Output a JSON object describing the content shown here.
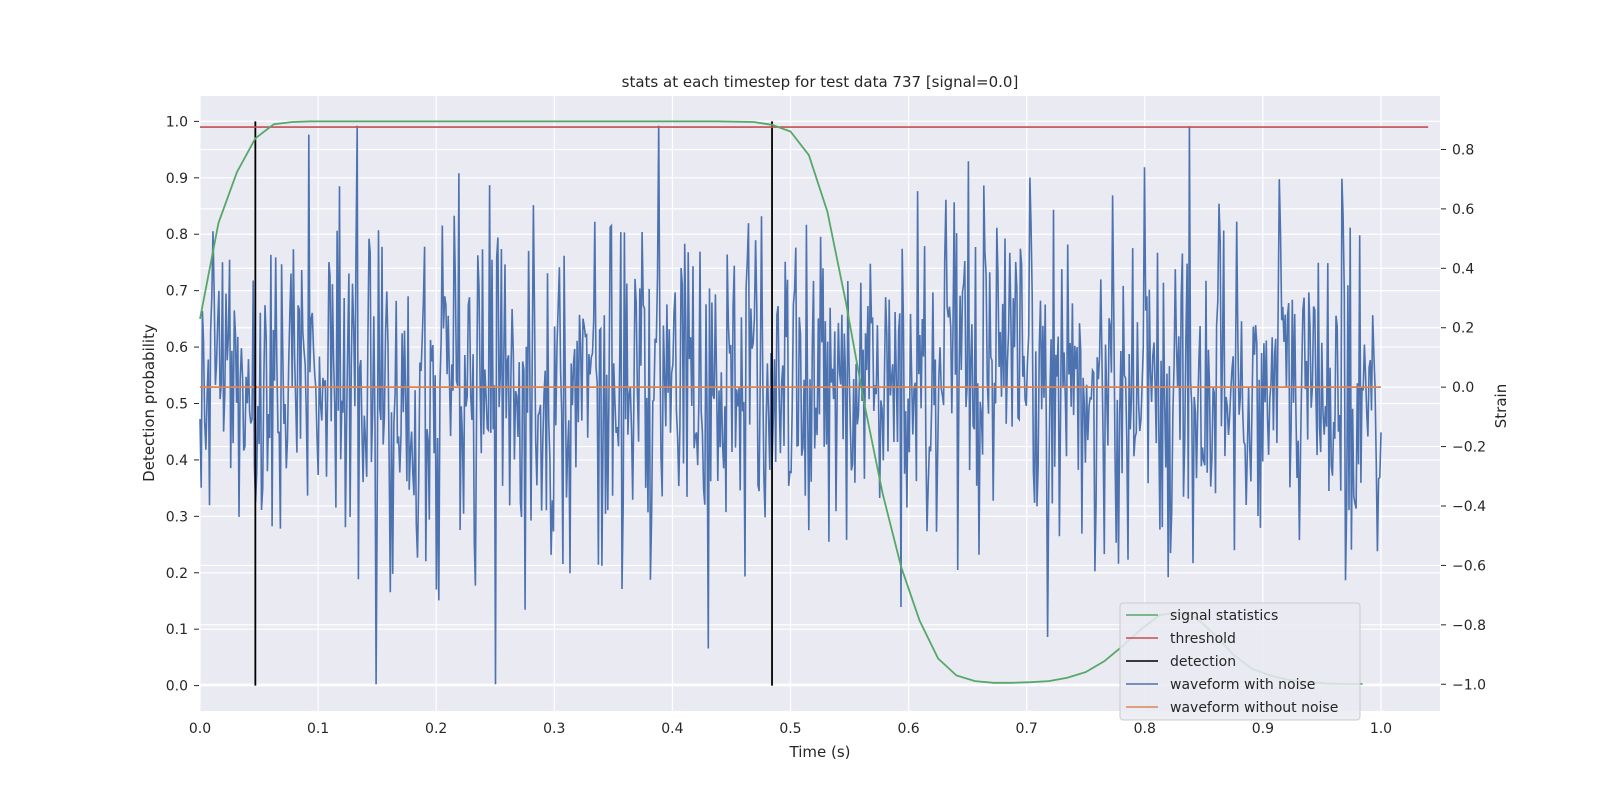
{
  "chart_data": {
    "type": "line",
    "title": "stats at each timestep for test data 737 [signal=0.0]",
    "xlabel": "Time (s)",
    "ylabel_left": "Detection probability",
    "ylabel_right": "Strain",
    "xlim": [
      0.0,
      1.05
    ],
    "ylim_left": [
      -0.045,
      1.045
    ],
    "ylim_right": [
      -1.09,
      0.98
    ],
    "x_ticks": [
      "0.0",
      "0.1",
      "0.2",
      "0.3",
      "0.4",
      "0.5",
      "0.6",
      "0.7",
      "0.8",
      "0.9",
      "1.0"
    ],
    "x_tick_values": [
      0.0,
      0.1,
      0.2,
      0.3,
      0.4,
      0.5,
      0.6,
      0.7,
      0.8,
      0.9,
      1.0
    ],
    "y_left_ticks": [
      "0.0",
      "0.1",
      "0.2",
      "0.3",
      "0.4",
      "0.5",
      "0.6",
      "0.7",
      "0.8",
      "0.9",
      "1.0"
    ],
    "y_left_tick_values": [
      0.0,
      0.1,
      0.2,
      0.3,
      0.4,
      0.5,
      0.6,
      0.7,
      0.8,
      0.9,
      1.0
    ],
    "y_right_ticks": [
      "−1.0",
      "−0.8",
      "−0.6",
      "−0.4",
      "−0.2",
      "0.0",
      "0.2",
      "0.4",
      "0.6",
      "0.8"
    ],
    "y_right_tick_values": [
      -1.0,
      -0.8,
      -0.6,
      -0.4,
      -0.2,
      0.0,
      0.2,
      0.4,
      0.6,
      0.8
    ],
    "grid": true,
    "legend_position": "lower-right",
    "series": [
      {
        "name": "signal statistics",
        "axis": "left",
        "color": "#55a868",
        "x": [
          0.0,
          0.015625,
          0.03125,
          0.046875,
          0.0625,
          0.078125,
          0.09375,
          0.125,
          0.25,
          0.375,
          0.4375,
          0.46875,
          0.484375,
          0.5,
          0.515625,
          0.53125,
          0.546875,
          0.5625,
          0.578125,
          0.59375,
          0.609375,
          0.625,
          0.640625,
          0.65625,
          0.671875,
          0.6875,
          0.703125,
          0.71875,
          0.734375,
          0.75,
          0.765625,
          0.78125,
          0.796875,
          0.8125,
          0.828125,
          0.84375,
          0.859375,
          0.875,
          0.890625,
          0.90625,
          0.921875,
          0.9375,
          0.953125,
          0.96875,
          0.984375
        ],
        "values": [
          0.65,
          0.82,
          0.91,
          0.97,
          0.995,
          0.999,
          1.0,
          1.0,
          1.0,
          1.0,
          1.0,
          0.999,
          0.994,
          0.982,
          0.94,
          0.84,
          0.68,
          0.5,
          0.34,
          0.21,
          0.115,
          0.048,
          0.018,
          0.008,
          0.005,
          0.005,
          0.006,
          0.008,
          0.014,
          0.024,
          0.043,
          0.07,
          0.1,
          0.125,
          0.13,
          0.12,
          0.09,
          0.055,
          0.03,
          0.018,
          0.01,
          0.006,
          0.004,
          0.003,
          0.003
        ]
      },
      {
        "name": "threshold",
        "axis": "left",
        "color": "#c44e52",
        "x": [
          0.0,
          1.04
        ],
        "values": [
          0.99,
          0.99
        ]
      },
      {
        "name": "detection",
        "axis": "left",
        "color": "#000000",
        "x_lines": [
          0.046875,
          0.484375
        ],
        "range": [
          0.0,
          1.0
        ]
      },
      {
        "name": "waveform with noise",
        "axis": "right",
        "color": "#4c72b0",
        "sample_count": 1000,
        "x_range": [
          0.0,
          1.0
        ],
        "std": 0.28,
        "peaks": [
          {
            "x": 0.092,
            "y": 0.85
          },
          {
            "x": 0.133,
            "y": 0.88
          },
          {
            "x": 0.219,
            "y": 0.72
          },
          {
            "x": 0.245,
            "y": 0.68
          },
          {
            "x": 0.25,
            "y": -1.0
          },
          {
            "x": 0.161,
            "y": -0.69
          },
          {
            "x": 0.594,
            "y": -0.74
          },
          {
            "x": 0.608,
            "y": 0.66
          },
          {
            "x": 0.8,
            "y": 0.74
          },
          {
            "x": 0.82,
            "y": -0.64
          },
          {
            "x": 0.914,
            "y": 0.7
          },
          {
            "x": 0.97,
            "y": -0.65
          }
        ]
      },
      {
        "name": "waveform without noise",
        "axis": "right",
        "color": "#dd8452",
        "x": [
          0.0,
          1.0
        ],
        "values": [
          0.0,
          0.0
        ]
      }
    ]
  }
}
